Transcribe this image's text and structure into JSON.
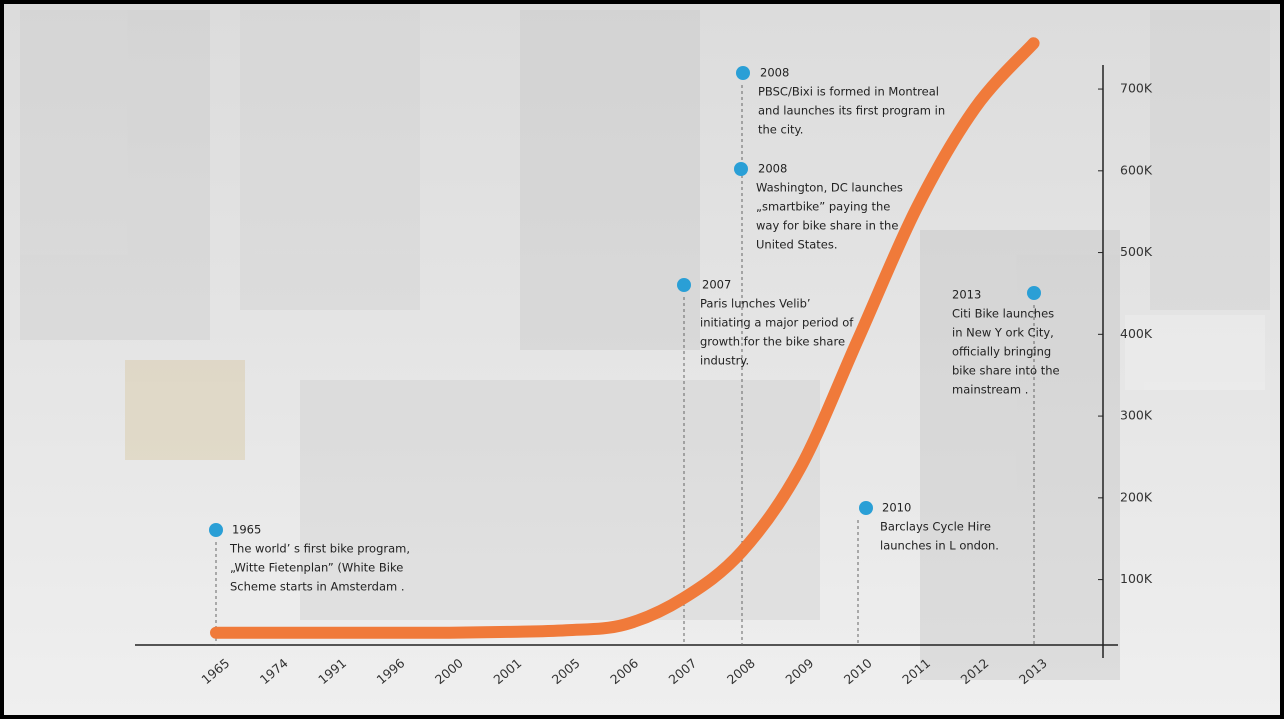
{
  "chart_data": {
    "type": "line",
    "categories": [
      "1965",
      "1974",
      "1991",
      "1996",
      "2000",
      "2001",
      "2005",
      "2006",
      "2007",
      "2008",
      "2009",
      "2010",
      "2011",
      "2012",
      "2013"
    ],
    "series": [
      {
        "color": "#f07a3a",
        "values": [
          35000,
          35000,
          35000,
          35000,
          35000,
          36000,
          38000,
          45000,
          77000,
          134000,
          236000,
          395000,
          555000,
          677000,
          756000
        ]
      }
    ],
    "ylim": [
      20000,
      760000
    ],
    "yticks": [
      {
        "value": 100000,
        "label": "100K"
      },
      {
        "value": 200000,
        "label": "200K"
      },
      {
        "value": 300000,
        "label": "300K"
      },
      {
        "value": 400000,
        "label": "400K"
      },
      {
        "value": 500000,
        "label": "500K"
      },
      {
        "value": 600000,
        "label": "600K"
      },
      {
        "value": 700000,
        "label": "700K"
      }
    ],
    "annotations": [
      {
        "title": "1965",
        "lines": [
          "The world’ s first bike      program,",
          "„Witte Fietenplan” (White Bike",
          "Scheme starts in Amsterdam   ."
        ]
      },
      {
        "title": "2008",
        "lines": [
          "PBSC/Bixi is formed in Montreal",
          "and launches its first program in",
          "the city."
        ]
      },
      {
        "title": "2008",
        "lines": [
          "Washington, DC launches",
          "„smartbike” paying the",
          "way for bike share in the",
          "United States."
        ]
      },
      {
        "title": "2007",
        "lines": [
          "Paris lunches  Velib’",
          "initiating a major period of",
          "growth for the bike share",
          "industry."
        ]
      },
      {
        "title": "2013",
        "lines": [
          "Citi Bike launches",
          "in New Y ork City,",
          "officially bringing",
          "bike share into the",
          "mainstream ."
        ]
      },
      {
        "title": "2010",
        "lines": [
          "Barclays Cycle Hire",
          "launches in L ondon."
        ]
      }
    ]
  }
}
